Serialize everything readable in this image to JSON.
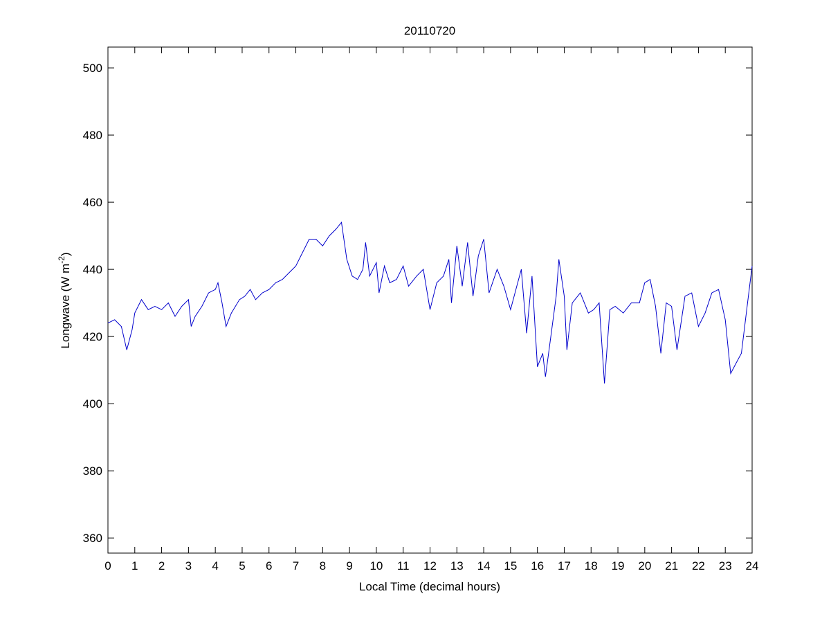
{
  "chart_data": {
    "type": "line",
    "title": "20110720",
    "xlabel": "Local Time (decimal hours)",
    "ylabel": {
      "text": "Longwave (W m",
      "superscript": "-2",
      "suffix": ")"
    },
    "xlim": [
      0,
      24
    ],
    "xticks": [
      0,
      1,
      2,
      3,
      4,
      5,
      6,
      7,
      8,
      9,
      10,
      11,
      12,
      13,
      14,
      15,
      16,
      17,
      18,
      19,
      20,
      21,
      22,
      23,
      24
    ],
    "ylim": [
      355.5,
      506.2
    ],
    "yticks": [
      360,
      380,
      400,
      420,
      440,
      460,
      480,
      500
    ],
    "grid": false,
    "x": [
      0,
      0.25,
      0.5,
      0.7,
      0.9,
      1.0,
      1.25,
      1.5,
      1.75,
      2.0,
      2.25,
      2.5,
      2.75,
      3.0,
      3.1,
      3.25,
      3.5,
      3.75,
      4.0,
      4.1,
      4.25,
      4.4,
      4.6,
      4.9,
      5.1,
      5.3,
      5.5,
      5.75,
      6.0,
      6.25,
      6.5,
      6.75,
      7.0,
      7.25,
      7.5,
      7.75,
      8.0,
      8.25,
      8.5,
      8.7,
      8.9,
      9.1,
      9.3,
      9.5,
      9.6,
      9.75,
      10.0,
      10.1,
      10.3,
      10.5,
      10.75,
      11.0,
      11.2,
      11.5,
      11.75,
      12.0,
      12.25,
      12.5,
      12.7,
      12.8,
      13.0,
      13.2,
      13.4,
      13.6,
      13.8,
      14.0,
      14.2,
      14.5,
      14.75,
      15.0,
      15.2,
      15.4,
      15.6,
      15.8,
      16.0,
      16.2,
      16.3,
      16.5,
      16.7,
      16.8,
      17.0,
      17.1,
      17.3,
      17.6,
      17.9,
      18.1,
      18.3,
      18.5,
      18.7,
      18.9,
      19.2,
      19.5,
      19.8,
      20.0,
      20.2,
      20.4,
      20.6,
      20.8,
      21.0,
      21.2,
      21.5,
      21.75,
      22.0,
      22.25,
      22.5,
      22.75,
      23.0,
      23.2,
      23.4,
      23.6,
      23.8,
      24.0
    ],
    "series": [
      {
        "color": "#0000cc",
        "values": [
          424,
          425,
          423,
          416,
          422,
          427,
          431,
          428,
          429,
          428,
          430,
          426,
          429,
          431,
          423,
          426,
          429,
          433,
          434,
          436,
          430,
          423,
          427,
          431,
          432,
          434,
          431,
          433,
          434,
          436,
          437,
          439,
          441,
          445,
          449,
          449,
          447,
          450,
          452,
          454,
          443,
          438,
          437,
          440,
          448,
          438,
          442,
          433,
          441,
          436,
          437,
          441,
          435,
          438,
          440,
          428,
          436,
          438,
          443,
          430,
          447,
          435,
          448,
          432,
          444,
          449,
          433,
          440,
          435,
          428,
          434,
          440,
          421,
          438,
          411,
          415,
          408,
          420,
          432,
          443,
          432,
          416,
          430,
          433,
          427,
          428,
          430,
          406,
          428,
          429,
          427,
          430,
          430,
          436,
          437,
          429,
          415,
          430,
          429,
          416,
          432,
          433,
          423,
          427,
          433,
          434,
          425,
          409,
          412,
          415,
          428,
          441
        ]
      }
    ]
  }
}
